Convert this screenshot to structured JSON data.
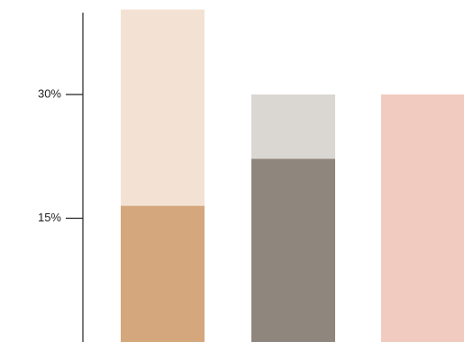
{
  "chart_data": {
    "type": "bar",
    "yaxis": {
      "ticks": [
        {
          "value": 15,
          "label": "15%"
        },
        {
          "value": 30,
          "label": "30%"
        }
      ]
    },
    "bars": [
      {
        "background_top": 40.3,
        "background_color": "#f3e2d4",
        "value": 16.5,
        "color": "#d4a77c"
      },
      {
        "background_top": 30,
        "background_color": "#dad7d2",
        "value": 22.2,
        "color": "#8f877d"
      },
      {
        "background_top": 30,
        "background_color": "#f1cbbf",
        "value": 30,
        "color": "#f1cbbf"
      }
    ]
  }
}
